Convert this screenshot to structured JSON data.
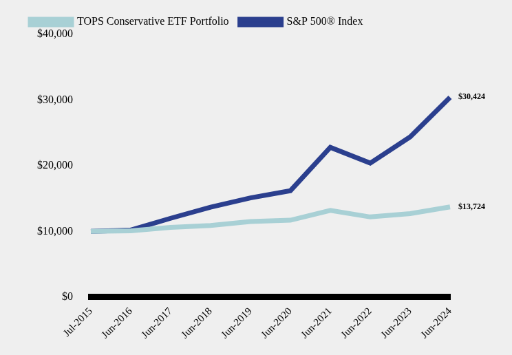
{
  "chart_data": {
    "type": "line",
    "categories": [
      "Jul-2015",
      "Jun-2016",
      "Jun-2017",
      "Jun-2018",
      "Jun-2019",
      "Jun-2020",
      "Jun-2021",
      "Jun-2022",
      "Jun-2023",
      "Jun-2024"
    ],
    "series": [
      {
        "name": "TOPS Conservative ETF Portfolio",
        "color": "#a8d0d5",
        "values": [
          10000,
          10100,
          10600,
          10900,
          11500,
          11700,
          13200,
          12200,
          12700,
          13724
        ],
        "value_labels": [
          null,
          null,
          null,
          null,
          null,
          null,
          null,
          null,
          null,
          "$13,724"
        ]
      },
      {
        "name": "S&P 500® Index",
        "color": "#2b3f8e",
        "values": [
          10000,
          10200,
          12000,
          13700,
          15100,
          16200,
          22800,
          20400,
          24400,
          30424
        ],
        "value_labels": [
          null,
          null,
          null,
          null,
          null,
          null,
          null,
          null,
          null,
          "$30,424"
        ]
      }
    ],
    "ylim": [
      0,
      40000
    ],
    "yticks": [
      {
        "value": 0,
        "label": "$0"
      },
      {
        "value": 10000,
        "label": "$10,000"
      },
      {
        "value": 20000,
        "label": "$20,000"
      },
      {
        "value": 30000,
        "label": "$30,000"
      },
      {
        "value": 40000,
        "label": "$40,000"
      }
    ],
    "grid": false,
    "legend": "top"
  }
}
